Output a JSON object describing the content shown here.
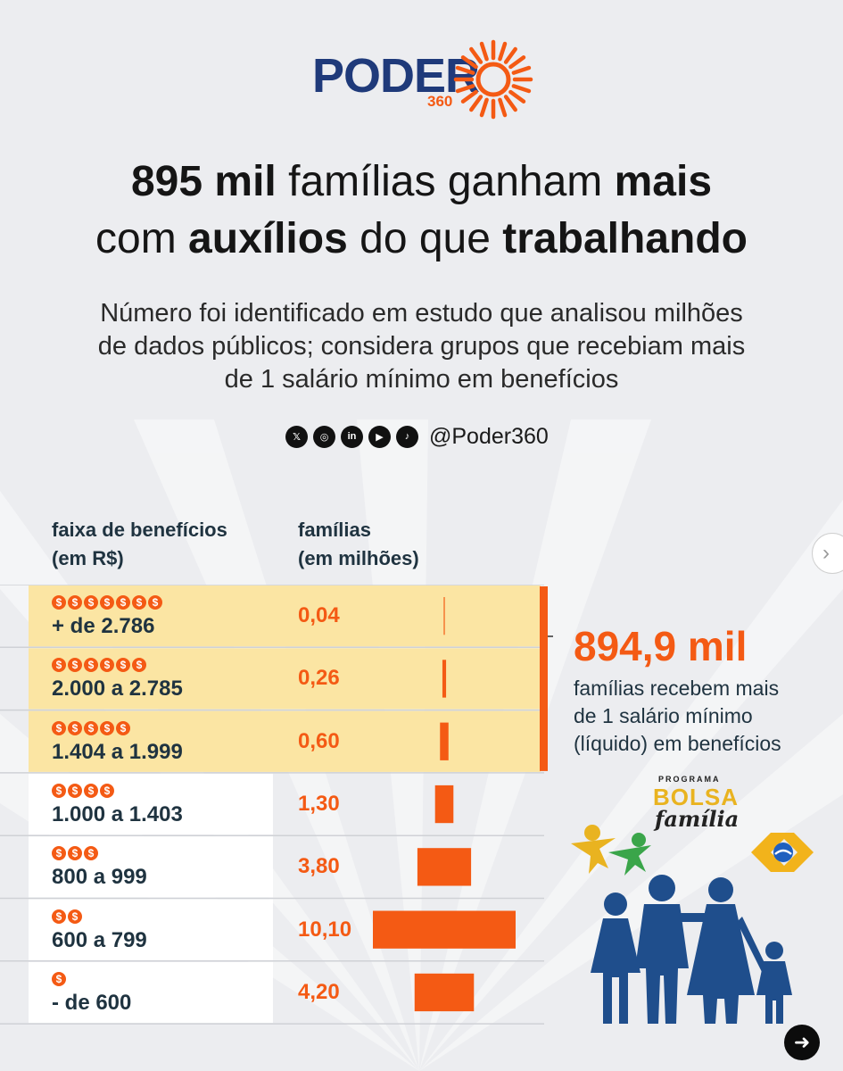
{
  "brand": {
    "name": "PODER",
    "sub": "360"
  },
  "headline": {
    "line1": [
      {
        "text": "895 mil",
        "bold": true
      },
      {
        "text": " famílias ganham ",
        "bold": false
      },
      {
        "text": "mais",
        "bold": true
      }
    ],
    "line2": [
      {
        "text": "com ",
        "bold": false
      },
      {
        "text": "auxílios",
        "bold": true
      },
      {
        "text": " do que ",
        "bold": false
      },
      {
        "text": "trabalhando",
        "bold": true
      }
    ]
  },
  "subtitle": [
    "Número foi identificado em estudo que analisou milhões",
    "de dados públicos; considera grupos que recebiam mais",
    "de 1 salário mínimo em benefícios"
  ],
  "social": {
    "icons": [
      "x-icon",
      "instagram-icon",
      "linkedin-icon",
      "youtube-icon",
      "tiktok-icon"
    ],
    "icon_glyphs": [
      "𝕏",
      "◎",
      "in",
      "▶",
      "♪"
    ],
    "handle": "@Poder360"
  },
  "columns": {
    "range": [
      "faixa de benefícios",
      "(em R$)"
    ],
    "families": [
      "famílias",
      "(em milhões)"
    ]
  },
  "chart_data": {
    "type": "bar",
    "orientation": "horizontal-centered",
    "categories": [
      "+ de 2.786",
      "2.000 a 2.785",
      "1.404 a 1.999",
      "1.000 a 1.403",
      "800 a 999",
      "600 a 799",
      "- de 600"
    ],
    "values": [
      0.04,
      0.26,
      0.6,
      1.3,
      3.8,
      10.1,
      4.2
    ],
    "labels": [
      "0,04",
      "0,26",
      "0,60",
      "1,30",
      "3,80",
      "10,10",
      "4,20"
    ],
    "coins": [
      7,
      6,
      5,
      4,
      3,
      2,
      1
    ],
    "highlighted": [
      true,
      true,
      true,
      false,
      false,
      false,
      false
    ],
    "xlabel": "famílias (em milhões)",
    "ylabel": "faixa de benefícios (em R$)"
  },
  "callout": {
    "value": "894,9 mil",
    "text": [
      "famílias recebem mais",
      "de 1 salário mínimo",
      "(líquido) em benefícios"
    ]
  },
  "program": {
    "top": "PROGRAMA",
    "bolsa": "BOLSA",
    "familia": "família"
  },
  "colors": {
    "orange": "#f45a14",
    "navy": "#1f3340",
    "highlight": "#fbe5a3",
    "bg": "#ecedf0",
    "logo_blue": "#1f3a7a"
  }
}
